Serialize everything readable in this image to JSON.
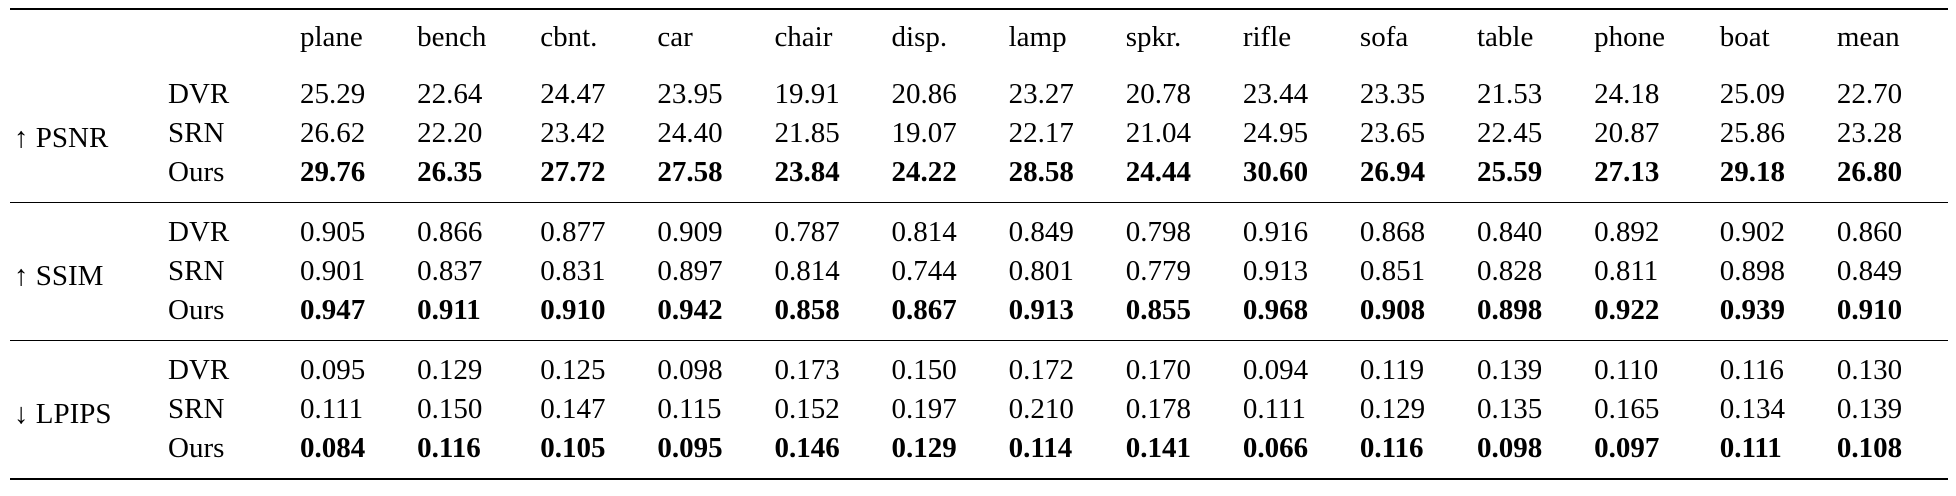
{
  "header": [
    "plane",
    "bench",
    "cbnt.",
    "car",
    "chair",
    "disp.",
    "lamp",
    "spkr.",
    "rifle",
    "sofa",
    "table",
    "phone",
    "boat",
    "mean"
  ],
  "groups": [
    {
      "metric": "↑ PSNR",
      "rows": [
        {
          "method": "DVR",
          "values": [
            "25.29",
            "22.64",
            "24.47",
            "23.95",
            "19.91",
            "20.86",
            "23.27",
            "20.78",
            "23.44",
            "23.35",
            "21.53",
            "24.18",
            "25.09",
            "22.70"
          ]
        },
        {
          "method": "SRN",
          "values": [
            "26.62",
            "22.20",
            "23.42",
            "24.40",
            "21.85",
            "19.07",
            "22.17",
            "21.04",
            "24.95",
            "23.65",
            "22.45",
            "20.87",
            "25.86",
            "23.28"
          ]
        },
        {
          "method": "Ours",
          "values": [
            "29.76",
            "26.35",
            "27.72",
            "27.58",
            "23.84",
            "24.22",
            "28.58",
            "24.44",
            "30.60",
            "26.94",
            "25.59",
            "27.13",
            "29.18",
            "26.80"
          ]
        }
      ]
    },
    {
      "metric": "↑ SSIM",
      "rows": [
        {
          "method": "DVR",
          "values": [
            "0.905",
            "0.866",
            "0.877",
            "0.909",
            "0.787",
            "0.814",
            "0.849",
            "0.798",
            "0.916",
            "0.868",
            "0.840",
            "0.892",
            "0.902",
            "0.860"
          ]
        },
        {
          "method": "SRN",
          "values": [
            "0.901",
            "0.837",
            "0.831",
            "0.897",
            "0.814",
            "0.744",
            "0.801",
            "0.779",
            "0.913",
            "0.851",
            "0.828",
            "0.811",
            "0.898",
            "0.849"
          ]
        },
        {
          "method": "Ours",
          "values": [
            "0.947",
            "0.911",
            "0.910",
            "0.942",
            "0.858",
            "0.867",
            "0.913",
            "0.855",
            "0.968",
            "0.908",
            "0.898",
            "0.922",
            "0.939",
            "0.910"
          ]
        }
      ]
    },
    {
      "metric": "↓ LPIPS",
      "rows": [
        {
          "method": "DVR",
          "values": [
            "0.095",
            "0.129",
            "0.125",
            "0.098",
            "0.173",
            "0.150",
            "0.172",
            "0.170",
            "0.094",
            "0.119",
            "0.139",
            "0.110",
            "0.116",
            "0.130"
          ]
        },
        {
          "method": "SRN",
          "values": [
            "0.111",
            "0.150",
            "0.147",
            "0.115",
            "0.152",
            "0.197",
            "0.210",
            "0.178",
            "0.111",
            "0.129",
            "0.135",
            "0.165",
            "0.134",
            "0.139"
          ]
        },
        {
          "method": "Ours",
          "values": [
            "0.084",
            "0.116",
            "0.105",
            "0.095",
            "0.146",
            "0.129",
            "0.114",
            "0.141",
            "0.066",
            "0.116",
            "0.098",
            "0.097",
            "0.111",
            "0.108"
          ]
        }
      ]
    }
  ],
  "best_method": "Ours"
}
